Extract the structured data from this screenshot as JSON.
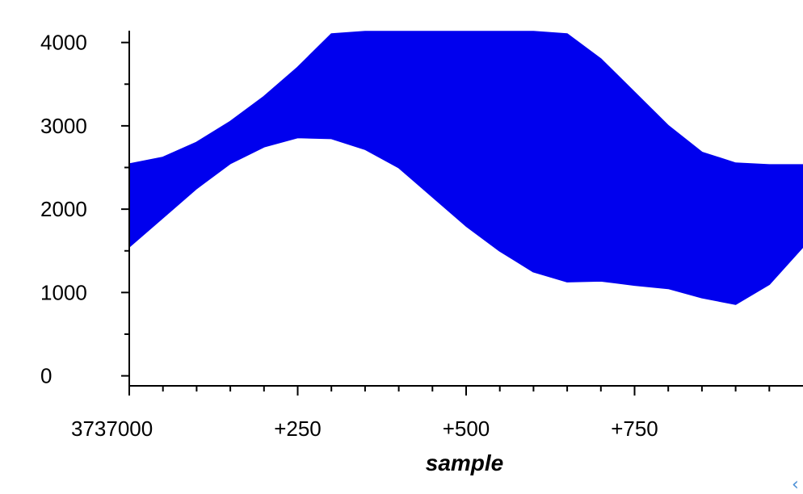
{
  "chart_data": {
    "type": "area",
    "title": "",
    "xlabel": "sample",
    "ylabel": "",
    "x_offset": 3737000,
    "xlim": [
      0,
      1000
    ],
    "ylim": [
      -120,
      4200
    ],
    "x_ticks": [
      0,
      250,
      500,
      750
    ],
    "x_tick_labels": [
      "3737000",
      "+250",
      "+500",
      "+750"
    ],
    "y_ticks": [
      0,
      1000,
      2000,
      3000,
      4000
    ],
    "y_tick_labels": [
      "0",
      "1000",
      "2000",
      "3000",
      "4000"
    ],
    "grid": false,
    "fill_color": "#0000ee",
    "series": [
      {
        "name": "",
        "x": [
          0,
          50,
          100,
          150,
          200,
          250,
          300,
          350,
          400,
          450,
          500,
          550,
          600,
          650,
          700,
          750,
          800,
          850,
          900,
          950,
          1000
        ],
        "upper": [
          2540,
          2620,
          2800,
          3050,
          3350,
          3700,
          4100,
          4130,
          4130,
          4130,
          4130,
          4130,
          4130,
          4100,
          3800,
          3400,
          3000,
          2680,
          2550,
          2530,
          2530
        ],
        "lower": [
          1550,
          1900,
          2250,
          2550,
          2750,
          2860,
          2850,
          2720,
          2500,
          2150,
          1800,
          1500,
          1250,
          1130,
          1140,
          1090,
          1050,
          940,
          860,
          1100,
          1550
        ]
      }
    ]
  },
  "ui": {
    "scroll_icon": "‹"
  }
}
